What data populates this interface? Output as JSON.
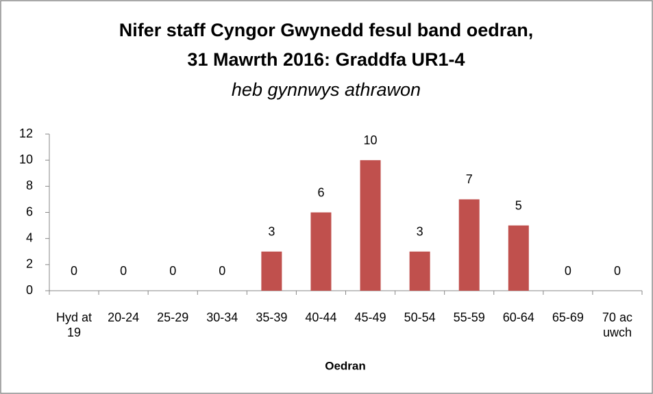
{
  "chart_data": {
    "type": "bar",
    "title": [
      "Nifer staff Cyngor Gwynedd fesul band oedran,",
      "31 Mawrth 2016: Graddfa UR1-4"
    ],
    "subtitle": "heb gynnwys athrawon",
    "x_label": "Oedran",
    "categories": [
      "Hyd at 19",
      "20-24",
      "25-29",
      "30-34",
      "35-39",
      "40-44",
      "45-49",
      "50-54",
      "55-59",
      "60-64",
      "65-69",
      "70 ac uwch"
    ],
    "values": [
      0,
      0,
      0,
      0,
      3,
      6,
      10,
      3,
      7,
      5,
      0,
      0
    ],
    "color": "#c0504d",
    "ylim": [
      0,
      12
    ],
    "yticks": [
      0,
      2,
      4,
      6,
      8,
      10,
      12
    ],
    "grid": false,
    "data_labels": true
  }
}
